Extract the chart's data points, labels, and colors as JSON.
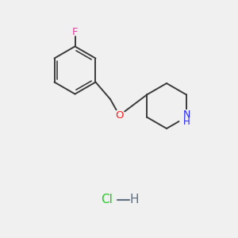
{
  "background_color": "#f0f0f0",
  "bond_color": "#3a3a3a",
  "bond_width": 1.4,
  "F_color": "#e040a0",
  "O_color": "#ff2020",
  "N_color": "#2020ff",
  "Cl_color": "#22cc22",
  "H_bond_color": "#607080",
  "font_size_atom": 8.5,
  "font_size_hcl": 9.5,
  "figsize": [
    3.0,
    3.0
  ],
  "dpi": 100,
  "xlim": [
    0,
    10
  ],
  "ylim": [
    0,
    10
  ]
}
